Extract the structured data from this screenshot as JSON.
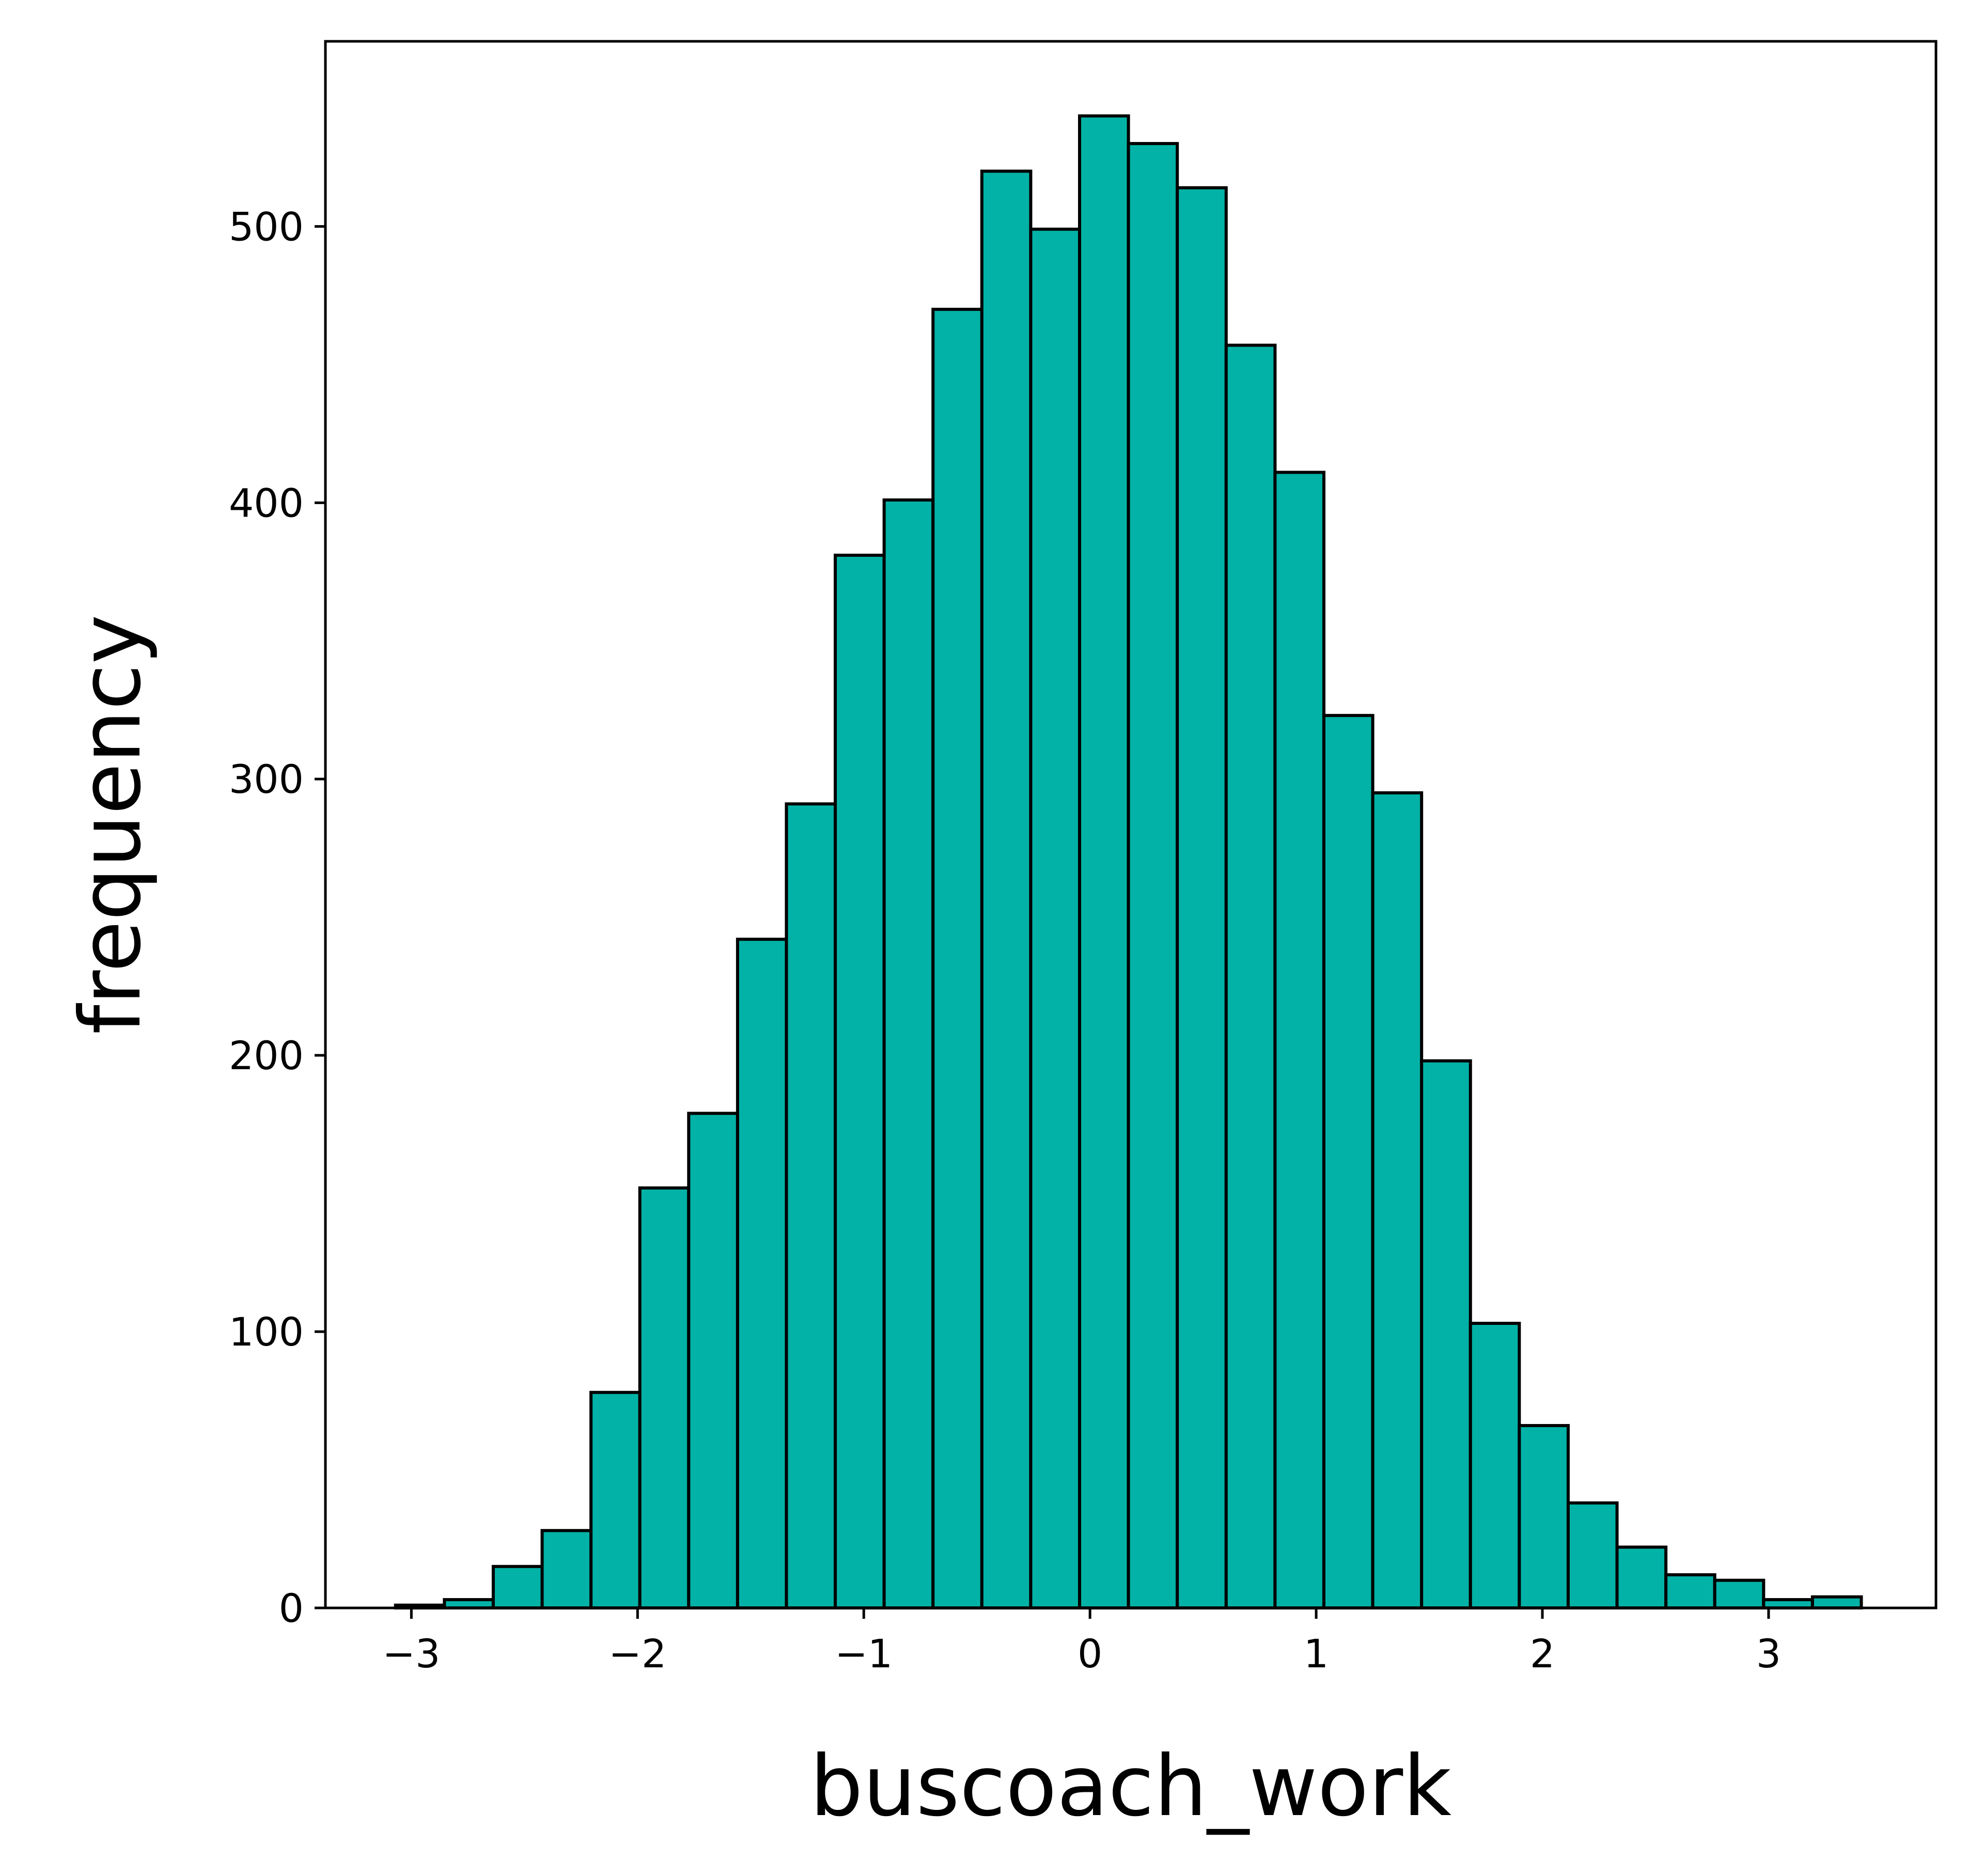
{
  "chart_data": {
    "type": "bar",
    "xlabel": "buscoach_work",
    "ylabel": "frequency",
    "xlim": [
      -3.38,
      3.74
    ],
    "ylim": [
      0,
      567
    ],
    "grid": false,
    "bar_color": "#02B2A6",
    "edge_color": "#000000",
    "x_ticks": [
      {
        "value": -3,
        "label": "−3"
      },
      {
        "value": -2,
        "label": "−2"
      },
      {
        "value": -1,
        "label": "−1"
      },
      {
        "value": 0,
        "label": "0"
      },
      {
        "value": 1,
        "label": "1"
      },
      {
        "value": 2,
        "label": "2"
      },
      {
        "value": 3,
        "label": "3"
      }
    ],
    "y_ticks": [
      {
        "value": 0,
        "label": "0"
      },
      {
        "value": 100,
        "label": "100"
      },
      {
        "value": 200,
        "label": "200"
      },
      {
        "value": 300,
        "label": "300"
      },
      {
        "value": 400,
        "label": "400"
      },
      {
        "value": 500,
        "label": "500"
      }
    ],
    "bin_edges": [
      -3.07,
      -2.854,
      -2.638,
      -2.422,
      -2.206,
      -1.99,
      -1.774,
      -1.558,
      -1.342,
      -1.126,
      -0.91,
      -0.694,
      -0.478,
      -0.262,
      -0.046,
      0.17,
      0.386,
      0.602,
      0.818,
      1.034,
      1.25,
      1.466,
      1.682,
      1.898,
      2.114,
      2.33,
      2.546,
      2.762,
      2.978,
      3.194,
      3.41
    ],
    "values": [
      1,
      3,
      15,
      28,
      78,
      152,
      179,
      242,
      291,
      381,
      401,
      470,
      520,
      499,
      540,
      530,
      514,
      457,
      411,
      323,
      295,
      198,
      103,
      66,
      38,
      22,
      12,
      10,
      3,
      4
    ]
  }
}
